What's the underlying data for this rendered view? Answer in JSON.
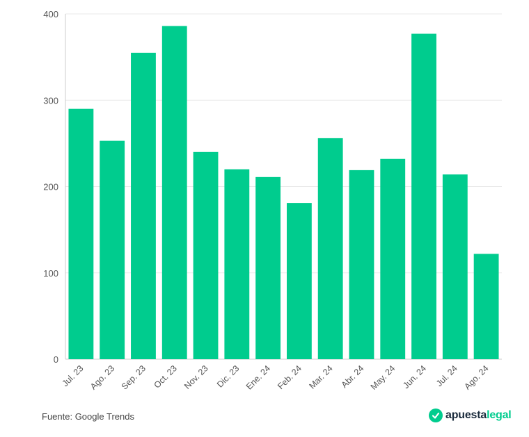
{
  "colors": {
    "bar": "#00cc8e",
    "grid": "#e9e9e9",
    "axis": "#cccccc",
    "tick_text": "#555555",
    "logo_dark": "#1a2b3c",
    "logo_accent": "#00cc8e"
  },
  "chart_data": {
    "type": "bar",
    "categories": [
      "Jul. 23",
      "Ago. 23",
      "Sep. 23",
      "Oct. 23",
      "Nov. 23",
      "Dic. 23",
      "Ene. 24",
      "Feb. 24",
      "Mar. 24",
      "Abr. 24",
      "May. 24",
      "Jun. 24",
      "Jul. 24",
      "Ago. 24"
    ],
    "values": [
      290,
      253,
      355,
      386,
      240,
      220,
      211,
      181,
      256,
      219,
      232,
      377,
      214,
      122
    ],
    "yticks": [
      "0",
      "100",
      "200",
      "300",
      "400"
    ],
    "ylim": [
      0,
      400
    ],
    "grid": true,
    "legend": "none"
  },
  "footer": {
    "source": "Fuente: Google Trends",
    "logo_main": "apuesta",
    "logo_accent": "legal",
    "logo_icon": "check-badge-icon"
  }
}
